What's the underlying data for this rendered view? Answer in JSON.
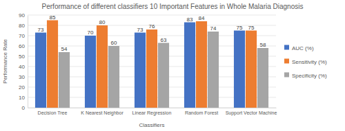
{
  "chart_data": {
    "type": "bar",
    "title": "Performance of different classifiers 10 Important Features in Whole Malaria Diagnosis",
    "x_label": "Classifiers",
    "y_label": "Performance Rate",
    "categories": [
      "Decision Tree",
      "K Nearest Neighbor",
      "Linear Regression",
      "Random Forest",
      "Support Vector Machine"
    ],
    "series": [
      {
        "name": "AUC (%)",
        "color": "#4472c4",
        "values": [
          73,
          70,
          73,
          83,
          75
        ]
      },
      {
        "name": "Sensitivity (%)",
        "color": "#ed7d31",
        "values": [
          85,
          80,
          76,
          84,
          75
        ]
      },
      {
        "name": "Specificity (%)",
        "color": "#a5a5a5",
        "values": [
          54,
          60,
          63,
          74,
          58
        ]
      }
    ],
    "ylim": [
      0,
      90
    ],
    "yticks": [
      0,
      10,
      20,
      30,
      40,
      50,
      60,
      70,
      80,
      90
    ],
    "grid": true,
    "legend": "right",
    "data_labels": true
  }
}
